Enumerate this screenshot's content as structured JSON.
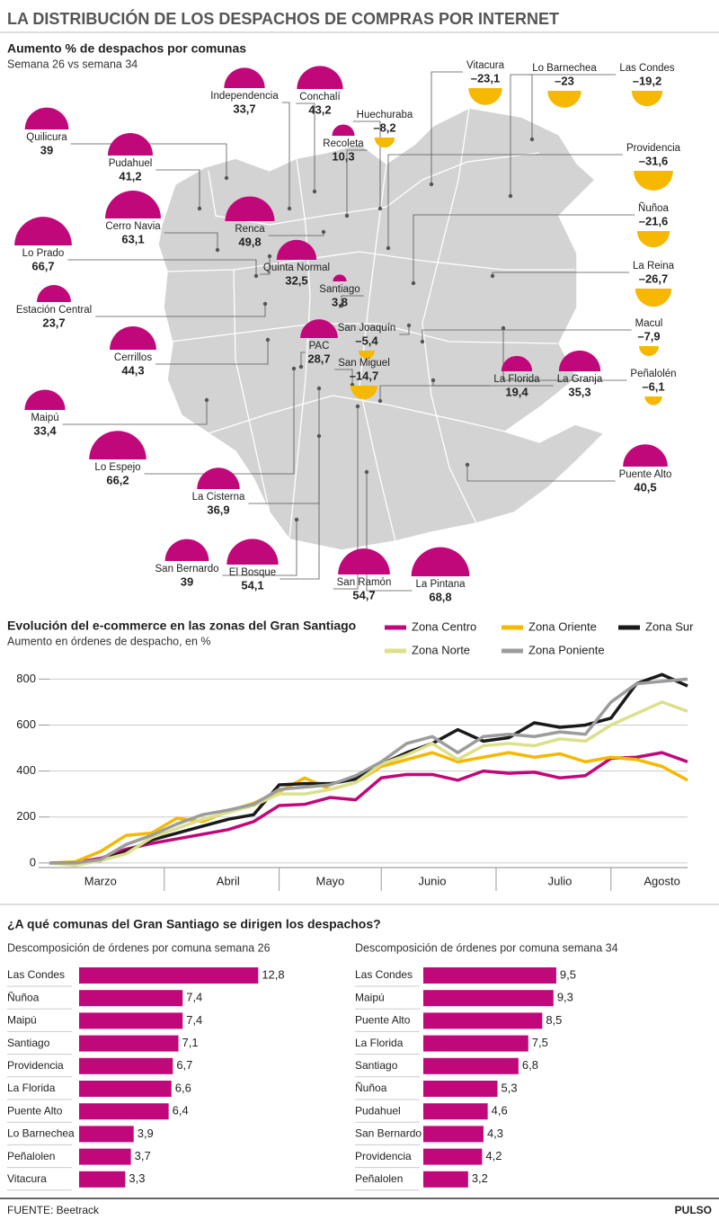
{
  "header": {
    "title": "LA DISTRIBUCIÓN DE LOS DESPACHOS DE COMPRAS POR INTERNET"
  },
  "bar_section": {
    "title": "¿A qué comunas del Gran Santiago se dirigen los despachos?"
  },
  "footer": {
    "source": "FUENTE: Beetrack",
    "brand": "PULSO"
  },
  "chart_data": [
    {
      "type": "bubble-map",
      "title": "Aumento % de despachos por comunas",
      "subtitle": "Semana 26 vs semana 34",
      "categories": [
        "Quilicura",
        "Independencia",
        "Conchalí",
        "Huechuraba",
        "Recoleta",
        "Pudahuel",
        "Cerro Navia",
        "Renca",
        "Lo Prado",
        "Quinta Normal",
        "Santiago",
        "Estación Central",
        "San Joaquín",
        "Cerrillos",
        "PAC",
        "San Miguel",
        "Maipú",
        "La Florida",
        "La Granja",
        "Lo Espejo",
        "Puente Alto",
        "La Cisterna",
        "San Bernardo",
        "El Bosque",
        "San Ramón",
        "La Pintana",
        "Vitacura",
        "Lo Barnechea",
        "Las Condes",
        "Providencia",
        "Ñuñoa",
        "La Reina",
        "Macul",
        "Peñalolén"
      ],
      "values": [
        39,
        33.7,
        43.2,
        -8.2,
        10.3,
        41.2,
        63.1,
        49.8,
        66.7,
        32.5,
        3.8,
        23.7,
        -5.4,
        44.3,
        28.7,
        -14.7,
        33.4,
        19.4,
        35.3,
        66.2,
        40.5,
        36.9,
        39,
        54.1,
        54.7,
        68.8,
        -23.1,
        -23,
        -19.2,
        -31.6,
        -21.6,
        -26.7,
        -7.9,
        -6.1
      ],
      "value_labels": [
        "39",
        "33,7",
        "43,2",
        "–8,2",
        "10,3",
        "41,2",
        "63,1",
        "49,8",
        "66,7",
        "32,5",
        "3,8",
        "23,7",
        "–5,4",
        "44,3",
        "28,7",
        "–14,7",
        "33,4",
        "19,4",
        "35,3",
        "66,2",
        "40,5",
        "36,9",
        "39",
        "54,1",
        "54,7",
        "68,8",
        "–23,1",
        "–23",
        "–19,2",
        "–31,6",
        "–21,6",
        "–26,7",
        "–7,9",
        "–6,1"
      ],
      "color": "#c0087a",
      "negative_color": "#f6b800"
    },
    {
      "type": "line",
      "title": "Evolución del e-commerce en las zonas del Gran Santiago",
      "subtitle": "Aumento en órdenes de despacho, en %",
      "categories": [
        null,
        null,
        "Marzo",
        null,
        null,
        null,
        null,
        "Abril",
        null,
        null,
        null,
        "Mayo",
        null,
        null,
        null,
        "Junio",
        null,
        null,
        null,
        null,
        "Julio",
        null,
        null,
        null,
        "Agosto",
        null
      ],
      "series": [
        {
          "name": "Zona Centro",
          "color": "#c0087a",
          "values": [
            0,
            2,
            20,
            60,
            85,
            105,
            125,
            145,
            180,
            250,
            255,
            285,
            275,
            370,
            385,
            385,
            360,
            400,
            390,
            395,
            370,
            380,
            455,
            460,
            480,
            440
          ]
        },
        {
          "name": "Zona Oriente",
          "color": "#f6b800",
          "values": [
            0,
            5,
            50,
            120,
            130,
            195,
            180,
            225,
            260,
            310,
            370,
            320,
            350,
            420,
            450,
            480,
            440,
            460,
            480,
            460,
            475,
            440,
            460,
            450,
            420,
            360
          ]
        },
        {
          "name": "Zona Sur",
          "color": "#1a1a1a",
          "values": [
            0,
            0,
            10,
            50,
            100,
            130,
            160,
            190,
            210,
            340,
            345,
            345,
            365,
            430,
            480,
            520,
            580,
            530,
            545,
            610,
            590,
            600,
            630,
            780,
            820,
            770
          ]
        },
        {
          "name": "Zona Norte",
          "color": "#dbe08c",
          "values": [
            0,
            -10,
            10,
            40,
            110,
            150,
            190,
            220,
            250,
            300,
            300,
            320,
            350,
            430,
            470,
            520,
            450,
            510,
            520,
            510,
            540,
            530,
            600,
            650,
            700,
            660
          ]
        },
        {
          "name": "Zona Poniente",
          "color": "#9c9c9c",
          "values": [
            0,
            0,
            15,
            80,
            120,
            170,
            210,
            230,
            255,
            320,
            330,
            340,
            380,
            440,
            520,
            550,
            480,
            550,
            560,
            550,
            570,
            560,
            700,
            780,
            790,
            800
          ]
        }
      ],
      "ylim": [
        -20,
        860
      ],
      "yticks": [
        0,
        200,
        400,
        600,
        800
      ],
      "grid": true
    },
    {
      "type": "hbar",
      "title": "Descomposición de órdenes por comuna semana 26",
      "categories": [
        "Las Condes",
        "Ñuñoa",
        "Maipú",
        "Santiago",
        "Providencia",
        "La Florida",
        "Puente Alto",
        "Lo Barnechea",
        "Peñalolen",
        "Vitacura"
      ],
      "values": [
        12.8,
        7.4,
        7.4,
        7.1,
        6.7,
        6.6,
        6.4,
        3.9,
        3.7,
        3.3
      ],
      "value_labels": [
        "12,8",
        "7,4",
        "7,4",
        "7,1",
        "6,7",
        "6,6",
        "6,4",
        "3,9",
        "3,7",
        "3,3"
      ],
      "color": "#c0087a",
      "xlim": [
        0,
        14
      ]
    },
    {
      "type": "hbar",
      "title": "Descomposición de órdenes por comuna semana 34",
      "categories": [
        "Las Condes",
        "Maipú",
        "Puente Alto",
        "La Florida",
        "Santiago",
        "Ñuñoa",
        "Pudahuel",
        "San Bernardo",
        "Providencia",
        "Peñalolen"
      ],
      "values": [
        9.5,
        9.3,
        8.5,
        7.5,
        6.8,
        5.3,
        4.6,
        4.3,
        4.2,
        3.2
      ],
      "value_labels": [
        "9,5",
        "9,3",
        "8,5",
        "7,5",
        "6,8",
        "5,3",
        "4,6",
        "4,3",
        "4,2",
        "3,2"
      ],
      "color": "#c0087a",
      "xlim": [
        0,
        14
      ]
    }
  ]
}
